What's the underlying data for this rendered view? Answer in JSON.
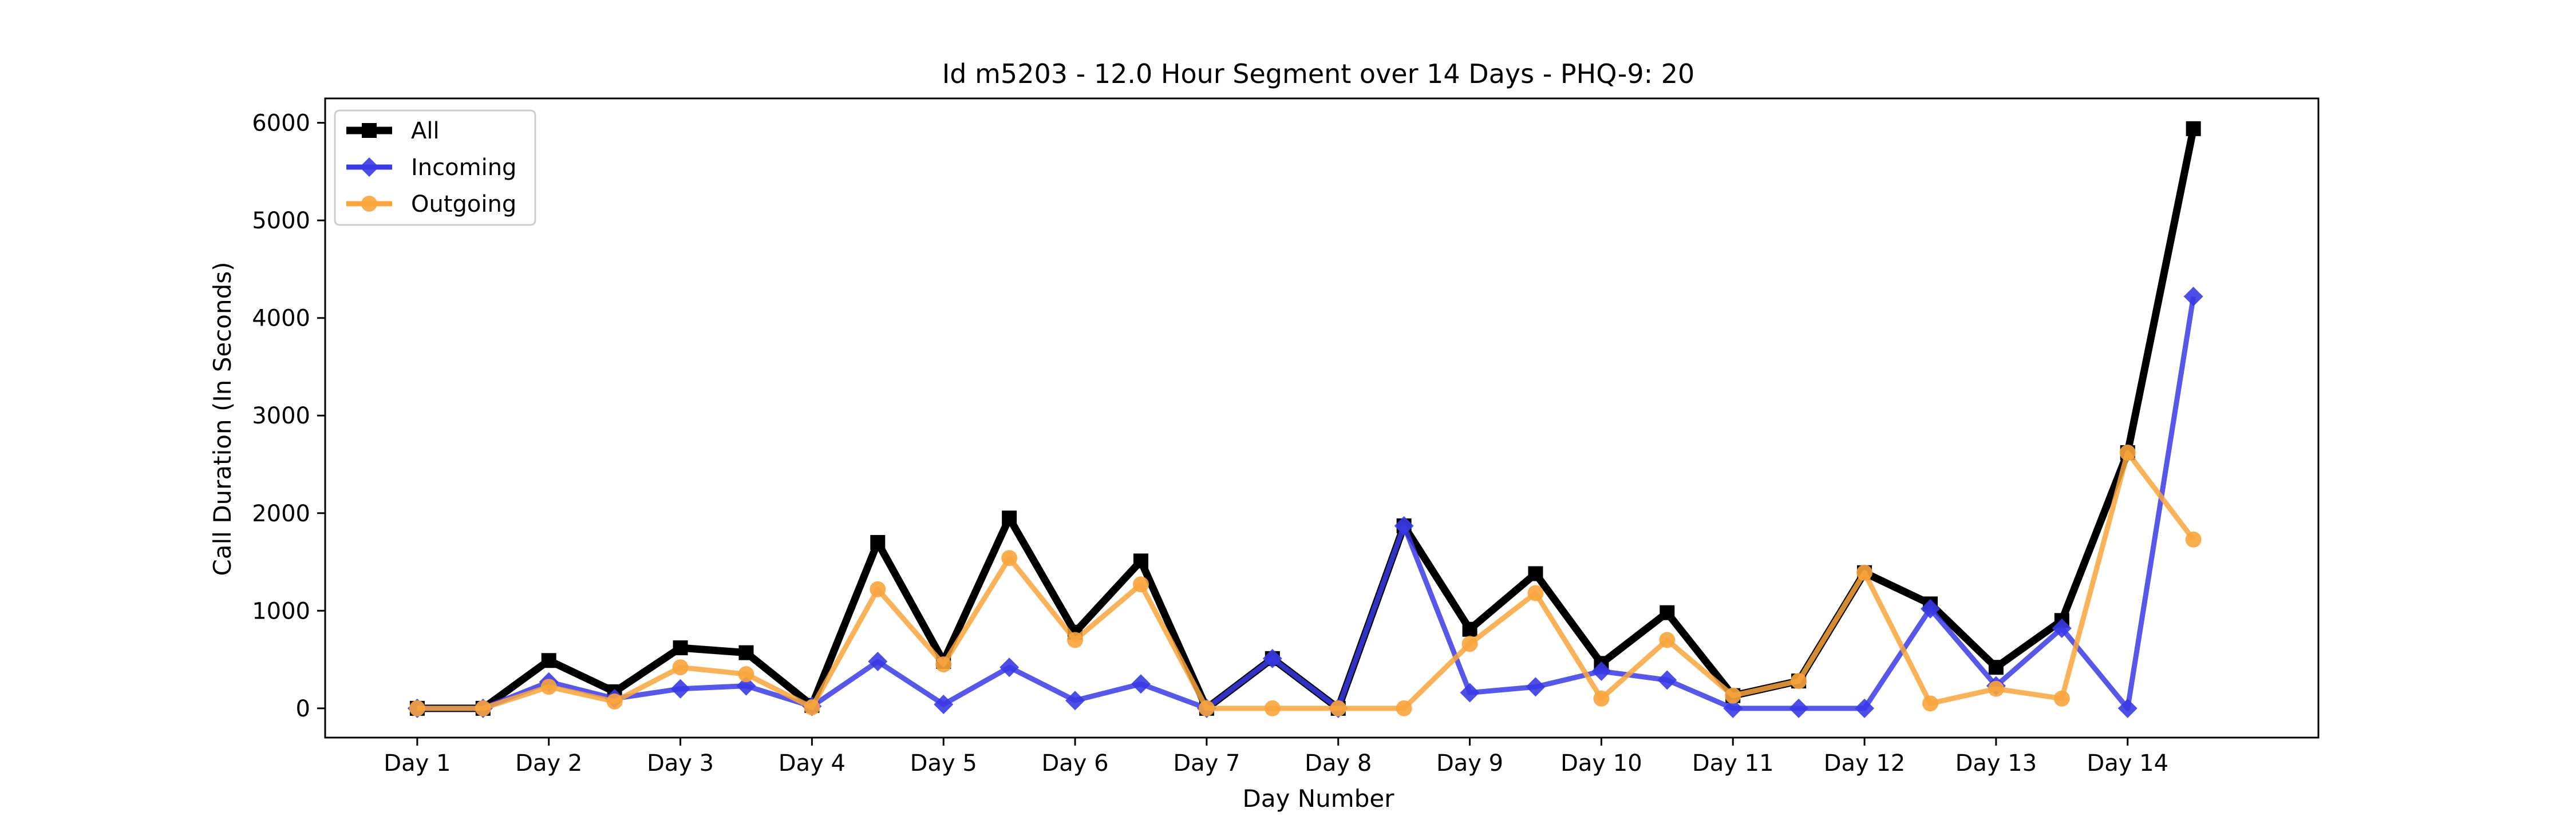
{
  "chart_data": {
    "type": "line",
    "title": "Id m5203 - 12.0 Hour Segment over 14 Days - PHQ-9: 20",
    "xlabel": "Day Number",
    "ylabel": "Call Duration (In Seconds)",
    "xlim": [
      0.3,
      15.45
    ],
    "ylim": [
      -300,
      6250
    ],
    "x_ticks": [
      1,
      2,
      3,
      4,
      5,
      6,
      7,
      8,
      9,
      10,
      11,
      12,
      13,
      14
    ],
    "x_tick_labels": [
      "Day 1",
      "Day 2",
      "Day 3",
      "Day 4",
      "Day 5",
      "Day 6",
      "Day 7",
      "Day 8",
      "Day 9",
      "Day 10",
      "Day 11",
      "Day 12",
      "Day 13",
      "Day 14"
    ],
    "y_ticks": [
      0,
      1000,
      2000,
      3000,
      4000,
      5000,
      6000
    ],
    "y_tick_labels": [
      "0",
      "1000",
      "2000",
      "3000",
      "4000",
      "5000",
      "6000"
    ],
    "grid": false,
    "legend_position": "top-left",
    "x": [
      1,
      1.5,
      2,
      2.5,
      3,
      3.5,
      4,
      4.5,
      5,
      5.5,
      6,
      6.5,
      7,
      7.5,
      8,
      8.5,
      9,
      9.5,
      10,
      10.5,
      11,
      11.5,
      12,
      12.5,
      13,
      13.5,
      14,
      14.5
    ],
    "series": [
      {
        "name": "All",
        "color": "#000000",
        "marker": "square",
        "values": [
          0,
          0,
          490,
          170,
          620,
          570,
          30,
          1700,
          480,
          1950,
          780,
          1510,
          0,
          510,
          0,
          1870,
          810,
          1380,
          460,
          980,
          130,
          280,
          1390,
          1070,
          420,
          900,
          2620,
          5940
        ]
      },
      {
        "name": "Incoming",
        "color": "#3a3ae6",
        "marker": "diamond",
        "values": [
          0,
          0,
          270,
          100,
          200,
          230,
          20,
          480,
          40,
          420,
          80,
          250,
          0,
          510,
          0,
          1870,
          160,
          220,
          380,
          290,
          0,
          0,
          0,
          1020,
          230,
          820,
          0,
          4220
        ]
      },
      {
        "name": "Outgoing",
        "color": "#f9a43c",
        "marker": "circle",
        "values": [
          0,
          0,
          220,
          70,
          420,
          350,
          10,
          1220,
          450,
          1540,
          700,
          1270,
          0,
          0,
          0,
          0,
          660,
          1180,
          100,
          700,
          130,
          280,
          1390,
          50,
          200,
          100,
          2620,
          1730
        ]
      }
    ]
  }
}
